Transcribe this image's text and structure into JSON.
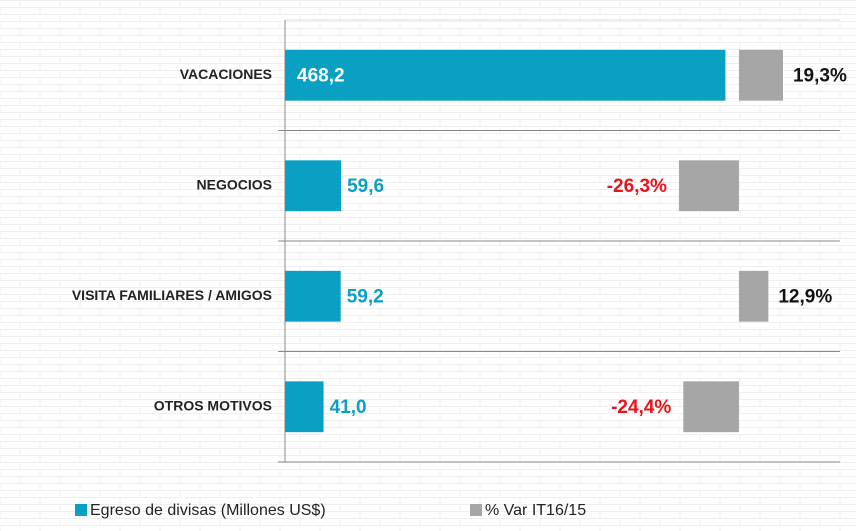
{
  "chart_data": {
    "type": "bar",
    "orientation": "horizontal",
    "categories": [
      "VACACIONES",
      "NEGOCIOS",
      "VISITA FAMILIARES / AMIGOS",
      "OTROS MOTIVOS"
    ],
    "series": [
      {
        "name": "Egreso de divisas (Millones US$)",
        "color": "#0aa0c4",
        "values": [
          468.2,
          59.6,
          59.2,
          41.0
        ],
        "value_labels": [
          "468,2",
          "59,6",
          "59,2",
          "41,0"
        ]
      },
      {
        "name": "% Var IT16/15",
        "color": "#a6a6a6",
        "axis": "x2",
        "values": [
          19.3,
          -26.3,
          12.9,
          -24.4
        ],
        "value_labels": [
          "19,3%",
          "-26,3%",
          "12,9%",
          "-24,4%"
        ]
      }
    ],
    "xlim": [
      0,
      590
    ],
    "x2lim": [
      -199,
      44.3
    ],
    "legend": "bottom"
  }
}
